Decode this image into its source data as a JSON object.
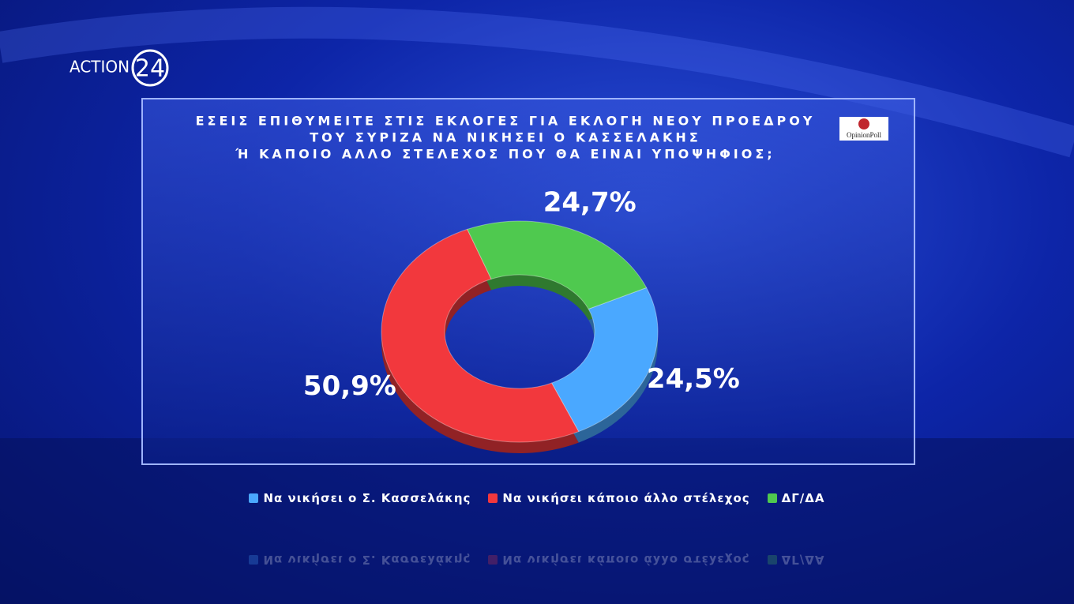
{
  "logo": {
    "text": "ACTION",
    "number": "24"
  },
  "source": "OpinionPoll",
  "chart_data": {
    "type": "pie",
    "title": [
      "ΕΣΕΙΣ ΕΠΙΘΥΜΕΙΤΕ ΣΤΙΣ ΕΚΛΟΓΕΣ ΓΙΑ ΕΚΛΟΓΗ ΝΕΟΥ ΠΡΟΕΔΡΟΥ",
      "ΤΟΥ ΣΥΡΙΖΑ ΝΑ ΝΙΚΗΣΕΙ Ο ΚΑΣΣΕΛΑΚΗΣ",
      "Ή ΚΑΠΟΙΟ ΑΛΛΟ ΣΤΕΛΕΧΟΣ ΠΟΥ ΘΑ ΕΙΝΑΙ ΥΠΟΨΗΦΙΟΣ;"
    ],
    "categories": [
      "Να νικήσει ο Σ. Κασσελάκης",
      "Να νικήσει κάποιο άλλο στέλεχος",
      "ΔΓ/ΔΑ"
    ],
    "values": [
      24.5,
      50.9,
      24.7
    ],
    "value_labels": [
      "24,5%",
      "50,9%",
      "24,7%"
    ],
    "colors": [
      "#4aa8ff",
      "#f2383d",
      "#4fc94f"
    ],
    "donut": true
  }
}
